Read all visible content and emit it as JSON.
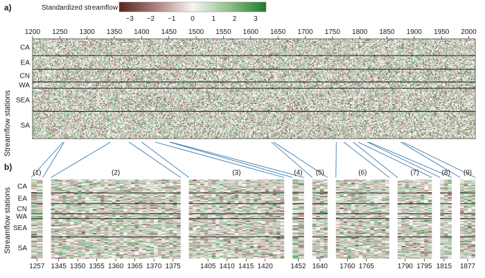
{
  "chart_data": {
    "type": "heatmap",
    "colorbar": {
      "title": "Standardized streamflow",
      "ticks": [
        "−3",
        "−2",
        "−1",
        "0",
        "1",
        "2",
        "3"
      ],
      "range": [
        -3.5,
        3.5
      ],
      "negative_color": "#6b2d26",
      "neutral_color": "#f7f5f2",
      "positive_color": "#1f7a2a"
    },
    "panel_a": {
      "label": "a)",
      "ylabel": "Streamflow stations",
      "x_range": [
        1200,
        2012
      ],
      "x_ticks": [
        "1200",
        "1250",
        "1300",
        "1350",
        "1400",
        "1450",
        "1500",
        "1550",
        "1600",
        "1650",
        "1700",
        "1750",
        "1800",
        "1850",
        "1900",
        "1950",
        "2000"
      ],
      "regions": [
        {
          "name": "CA",
          "stations": 16
        },
        {
          "name": "EA",
          "stations": 13
        },
        {
          "name": "CN",
          "stations": 12
        },
        {
          "name": "WA",
          "stations": 6
        },
        {
          "name": "SEA",
          "stations": 22
        },
        {
          "name": "SA",
          "stations": 26
        }
      ]
    },
    "panel_b": {
      "label": "b)",
      "ylabel": "Streamflow stations",
      "segments": [
        {
          "id": "(1)",
          "start": 1256,
          "end": 1258,
          "ticks": [
            "1257"
          ]
        },
        {
          "id": "(2)",
          "start": 1343,
          "end": 1377,
          "ticks": [
            "1345",
            "1350",
            "1355",
            "1360",
            "1365",
            "1370",
            "1375"
          ]
        },
        {
          "id": "(3)",
          "start": 1400,
          "end": 1425,
          "ticks": [
            "1405",
            "1410",
            "1415",
            "1420"
          ]
        },
        {
          "id": "(4)",
          "start": 1451,
          "end": 1453,
          "ticks": [
            "1452"
          ]
        },
        {
          "id": "(5)",
          "start": 1638,
          "end": 1642,
          "ticks": [
            "1640"
          ]
        },
        {
          "id": "(6)",
          "start": 1757,
          "end": 1771,
          "ticks": [
            "1760",
            "1765"
          ]
        },
        {
          "id": "(7)",
          "start": 1788,
          "end": 1797,
          "ticks": [
            "1790",
            "1795"
          ]
        },
        {
          "id": "(8)",
          "start": 1814,
          "end": 1817,
          "ticks": [
            "1815"
          ]
        },
        {
          "id": "(9)",
          "start": 1875,
          "end": 1879,
          "ticks": [
            "1877"
          ]
        }
      ]
    }
  }
}
